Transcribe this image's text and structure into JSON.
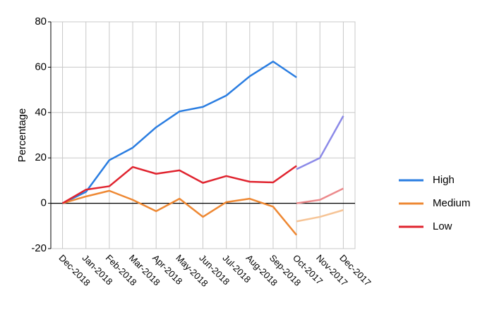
{
  "chart_data": {
    "type": "line",
    "y_label": "Percentage",
    "categories": [
      "Dec-2018",
      "Jan-2018",
      "Feb-2018",
      "Mar-2018",
      "Apr-2018",
      "May-2018",
      "Jun-2018",
      "Jul-2018",
      "Aug-2018",
      "Sep-2018",
      "Oct-2017",
      "Nov-2017",
      "Dec-2017"
    ],
    "series": [
      {
        "name": "High",
        "color": "#2a7de1",
        "values": [
          0,
          5,
          19,
          24.5,
          33.5,
          40.5,
          42.5,
          47.5,
          56,
          62.5,
          55.5,
          null,
          null
        ]
      },
      {
        "name": "Medium",
        "color": "#ee8833",
        "values": [
          0,
          3,
          5.5,
          1.5,
          -3.5,
          2,
          -6,
          0.5,
          2,
          -1.5,
          -14,
          null,
          null
        ]
      },
      {
        "name": "Low",
        "color": "#e0242f",
        "values": [
          0,
          6,
          7.5,
          16,
          13,
          14.5,
          9,
          12,
          9.5,
          9.2,
          16.5,
          null,
          null
        ]
      },
      {
        "color": "#8c8ae8",
        "values": [
          null,
          null,
          null,
          null,
          null,
          null,
          null,
          null,
          null,
          null,
          15,
          20,
          38.5
        ]
      },
      {
        "color": "#f6c496",
        "values": [
          null,
          null,
          null,
          null,
          null,
          null,
          null,
          null,
          null,
          null,
          -8,
          -6,
          -3
        ]
      },
      {
        "color": "#ec8a8c",
        "values": [
          null,
          null,
          null,
          null,
          null,
          null,
          null,
          null,
          null,
          null,
          0,
          1.5,
          6.5
        ]
      }
    ],
    "ylim": [
      -20,
      80
    ],
    "yticks": [
      -20,
      0,
      20,
      40,
      60,
      80
    ],
    "grid": true
  }
}
